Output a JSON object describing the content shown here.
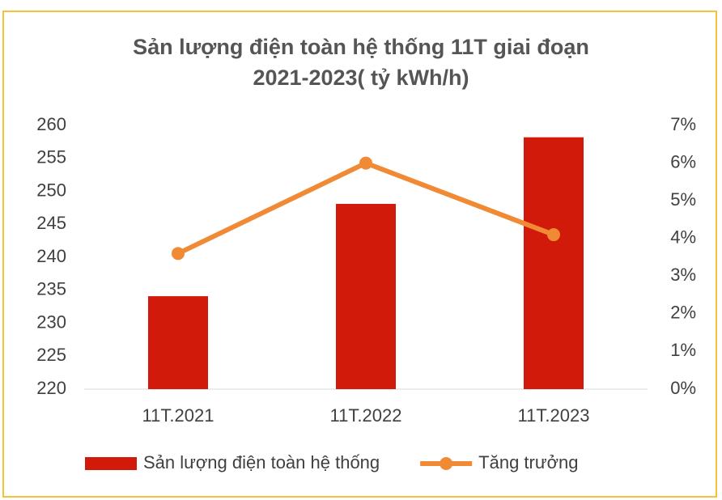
{
  "chart_data": {
    "type": "bar_line",
    "title": [
      "Sản lượng điện toàn hệ thống 11T giai đoạn",
      "2021-2023( tỷ kWh/h)"
    ],
    "categories": [
      "11T.2021",
      "11T.2022",
      "11T.2023"
    ],
    "series": [
      {
        "name": "Sản lượng điện toàn hệ thống",
        "type": "bar",
        "color": "#d11a0a",
        "values": [
          234.1,
          248.1,
          258.2
        ]
      },
      {
        "name": "Tăng trưởng",
        "type": "line",
        "color": "#f08a35",
        "axis": "y2",
        "values": [
          3.6,
          6.0,
          4.1
        ]
      }
    ],
    "ylim": [
      220,
      260
    ],
    "yticks": [
      220,
      225,
      230,
      235,
      240,
      245,
      250,
      255,
      260
    ],
    "y2lim": [
      0,
      7
    ],
    "y2ticks": [
      {
        "value": 0,
        "label": "0%"
      },
      {
        "value": 1,
        "label": "1%"
      },
      {
        "value": 2,
        "label": "2%"
      },
      {
        "value": 3,
        "label": "3%"
      },
      {
        "value": 4,
        "label": "4%"
      },
      {
        "value": 5,
        "label": "5%"
      },
      {
        "value": 6,
        "label": "6%"
      },
      {
        "value": 7,
        "label": "7%"
      }
    ],
    "grid": false,
    "legend": "bottom"
  }
}
